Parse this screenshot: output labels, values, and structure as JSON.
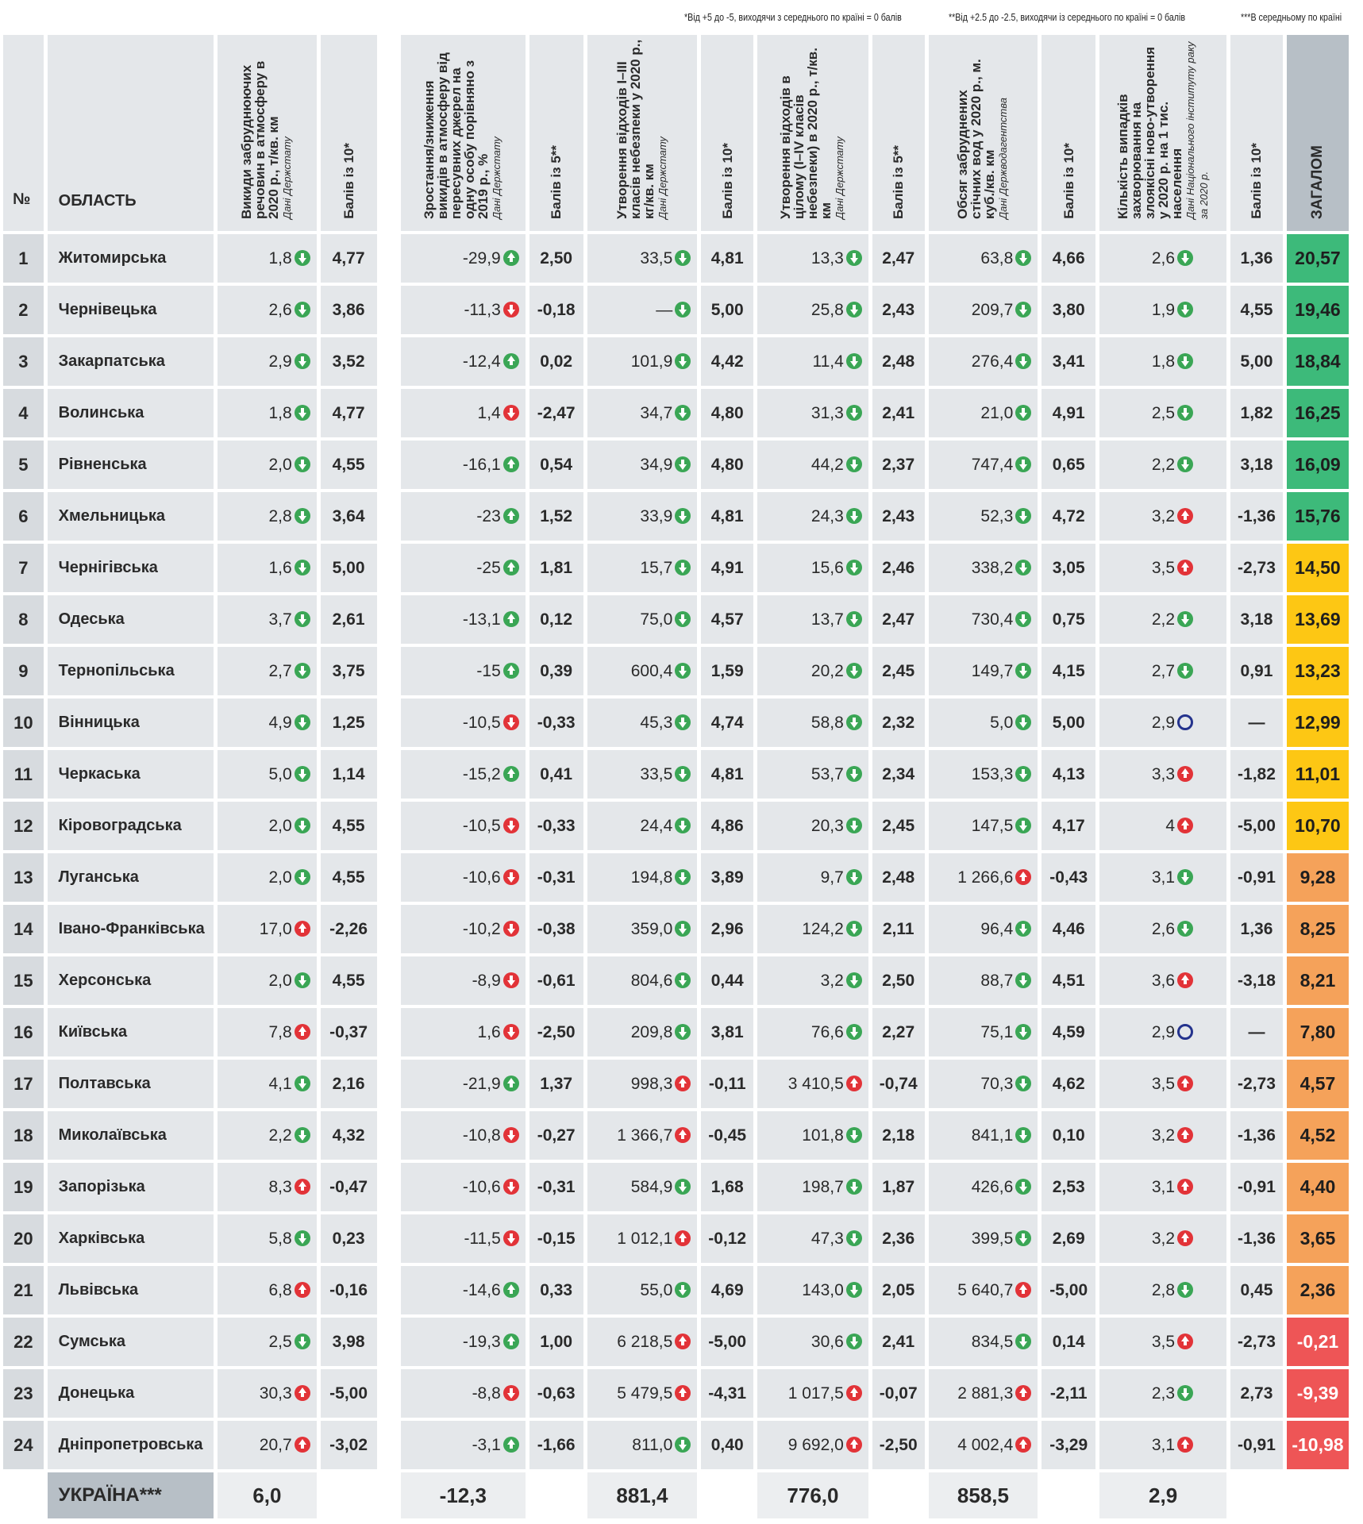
{
  "notes": [
    "*Від +5 до -5, виходячи з середнього по країні = 0 балів",
    "**Від +2.5 до -2.5, виходячи із середнього по країні = 0 балів",
    "***В середньому по країні"
  ],
  "headers": {
    "num": "№",
    "region": "ОБЛАСТЬ",
    "c1": {
      "title": "Викиди забруднюючих речовин в атмосферу в 2020 р., т/кв. км",
      "source": "Дані Держстату"
    },
    "s1": "Балів із 10*",
    "c2": {
      "title": "Зростання/зниження викидів в атмосферу від пересувних джерел на одну особу порівняно з 2019 р., %",
      "source": "Дані Держстату"
    },
    "s2": "Балів із 5**",
    "c3": {
      "title": "Утворення відходів I–III класів небезпеки у 2020 р., кг/кв. км",
      "source": "Дані Держстату"
    },
    "s3": "Балів із 10*",
    "c4": {
      "title": "Утворення відходів в цілому (I–IV класів небезпеки) в 2020 р., т/кв. км",
      "source": "Дані Держстату"
    },
    "s4": "Балів із 5**",
    "c5": {
      "title": "Обсяг забруднених стічних вод у 2020 р., м. куб./кв. км",
      "source": "Дані Держводагентства"
    },
    "s5": "Балів із 10*",
    "c6": {
      "title": "Кількість випадків захворювання на злоякісні ново-утворення у 2020 р. на 1 тис. населення",
      "source": "Дані Національного інституту раку за 2020 р."
    },
    "s6": "Балів із 10*",
    "total": "ЗАГАЛОМ"
  },
  "icon_legend": {
    "green": "#3aa655",
    "red": "#e23338",
    "circle": "#24338d"
  },
  "total_colors": {
    "green": "#3dba7a",
    "yellow": "#fdc714",
    "orange": "#f5a25a",
    "red": "#ee5556"
  },
  "rows": [
    {
      "n": "1",
      "region": "Житомирська",
      "v1": "1,8",
      "i1": "down",
      "s1": "4,77",
      "v2": "-29,9",
      "i2": "green-up",
      "s2": "2,50",
      "v3": "33,5",
      "i3": "down",
      "s3": "4,81",
      "v4": "13,3",
      "i4": "down",
      "s4": "2,47",
      "v5": "63,8",
      "i5": "down",
      "s5": "4,66",
      "v6": "2,6",
      "i6": "down",
      "s6": "1,36",
      "total": "20,57",
      "tc": "green"
    },
    {
      "n": "2",
      "region": "Чернівецька",
      "v1": "2,6",
      "i1": "down",
      "s1": "3,86",
      "v2": "-11,3",
      "i2": "red-down",
      "s2": "-0,18",
      "v3": "—",
      "i3": "down",
      "s3": "5,00",
      "v4": "25,8",
      "i4": "down",
      "s4": "2,43",
      "v5": "209,7",
      "i5": "down",
      "s5": "3,80",
      "v6": "1,9",
      "i6": "down",
      "s6": "4,55",
      "total": "19,46",
      "tc": "green"
    },
    {
      "n": "3",
      "region": "Закарпатська",
      "v1": "2,9",
      "i1": "down",
      "s1": "3,52",
      "v2": "-12,4",
      "i2": "green-up",
      "s2": "0,02",
      "v3": "101,9",
      "i3": "down",
      "s3": "4,42",
      "v4": "11,4",
      "i4": "down",
      "s4": "2,48",
      "v5": "276,4",
      "i5": "down",
      "s5": "3,41",
      "v6": "1,8",
      "i6": "down",
      "s6": "5,00",
      "total": "18,84",
      "tc": "green"
    },
    {
      "n": "4",
      "region": "Волинська",
      "v1": "1,8",
      "i1": "down",
      "s1": "4,77",
      "v2": "1,4",
      "i2": "red-down",
      "s2": "-2,47",
      "v3": "34,7",
      "i3": "down",
      "s3": "4,80",
      "v4": "31,3",
      "i4": "down",
      "s4": "2,41",
      "v5": "21,0",
      "i5": "down",
      "s5": "4,91",
      "v6": "2,5",
      "i6": "down",
      "s6": "1,82",
      "total": "16,25",
      "tc": "green"
    },
    {
      "n": "5",
      "region": "Рівненська",
      "v1": "2,0",
      "i1": "down",
      "s1": "4,55",
      "v2": "-16,1",
      "i2": "green-up",
      "s2": "0,54",
      "v3": "34,9",
      "i3": "down",
      "s3": "4,80",
      "v4": "44,2",
      "i4": "down",
      "s4": "2,37",
      "v5": "747,4",
      "i5": "down",
      "s5": "0,65",
      "v6": "2,2",
      "i6": "down",
      "s6": "3,18",
      "total": "16,09",
      "tc": "green"
    },
    {
      "n": "6",
      "region": "Хмельницька",
      "v1": "2,8",
      "i1": "down",
      "s1": "3,64",
      "v2": "-23",
      "i2": "green-up",
      "s2": "1,52",
      "v3": "33,9",
      "i3": "down",
      "s3": "4,81",
      "v4": "24,3",
      "i4": "down",
      "s4": "2,43",
      "v5": "52,3",
      "i5": "down",
      "s5": "4,72",
      "v6": "3,2",
      "i6": "up",
      "s6": "-1,36",
      "total": "15,76",
      "tc": "green"
    },
    {
      "n": "7",
      "region": "Чернігівська",
      "v1": "1,6",
      "i1": "down",
      "s1": "5,00",
      "v2": "-25",
      "i2": "green-up",
      "s2": "1,81",
      "v3": "15,7",
      "i3": "down",
      "s3": "4,91",
      "v4": "15,6",
      "i4": "down",
      "s4": "2,46",
      "v5": "338,2",
      "i5": "down",
      "s5": "3,05",
      "v6": "3,5",
      "i6": "up",
      "s6": "-2,73",
      "total": "14,50",
      "tc": "yellow"
    },
    {
      "n": "8",
      "region": "Одеська",
      "v1": "3,7",
      "i1": "down",
      "s1": "2,61",
      "v2": "-13,1",
      "i2": "green-up",
      "s2": "0,12",
      "v3": "75,0",
      "i3": "down",
      "s3": "4,57",
      "v4": "13,7",
      "i4": "down",
      "s4": "2,47",
      "v5": "730,4",
      "i5": "down",
      "s5": "0,75",
      "v6": "2,2",
      "i6": "down",
      "s6": "3,18",
      "total": "13,69",
      "tc": "yellow"
    },
    {
      "n": "9",
      "region": "Тернопільська",
      "v1": "2,7",
      "i1": "down",
      "s1": "3,75",
      "v2": "-15",
      "i2": "green-up",
      "s2": "0,39",
      "v3": "600,4",
      "i3": "down",
      "s3": "1,59",
      "v4": "20,2",
      "i4": "down",
      "s4": "2,45",
      "v5": "149,7",
      "i5": "down",
      "s5": "4,15",
      "v6": "2,7",
      "i6": "down",
      "s6": "0,91",
      "total": "13,23",
      "tc": "yellow"
    },
    {
      "n": "10",
      "region": "Вінницька",
      "v1": "4,9",
      "i1": "down",
      "s1": "1,25",
      "v2": "-10,5",
      "i2": "red-down",
      "s2": "-0,33",
      "v3": "45,3",
      "i3": "down",
      "s3": "4,74",
      "v4": "58,8",
      "i4": "down",
      "s4": "2,32",
      "v5": "5,0",
      "i5": "down",
      "s5": "5,00",
      "v6": "2,9",
      "i6": "circle",
      "s6": "—",
      "total": "12,99",
      "tc": "yellow"
    },
    {
      "n": "11",
      "region": "Черкаська",
      "v1": "5,0",
      "i1": "down",
      "s1": "1,14",
      "v2": "-15,2",
      "i2": "green-up",
      "s2": "0,41",
      "v3": "33,5",
      "i3": "down",
      "s3": "4,81",
      "v4": "53,7",
      "i4": "down",
      "s4": "2,34",
      "v5": "153,3",
      "i5": "down",
      "s5": "4,13",
      "v6": "3,3",
      "i6": "up",
      "s6": "-1,82",
      "total": "11,01",
      "tc": "yellow"
    },
    {
      "n": "12",
      "region": "Кіровоградська",
      "v1": "2,0",
      "i1": "down",
      "s1": "4,55",
      "v2": "-10,5",
      "i2": "red-down",
      "s2": "-0,33",
      "v3": "24,4",
      "i3": "down",
      "s3": "4,86",
      "v4": "20,3",
      "i4": "down",
      "s4": "2,45",
      "v5": "147,5",
      "i5": "down",
      "s5": "4,17",
      "v6": "4",
      "i6": "up",
      "s6": "-5,00",
      "total": "10,70",
      "tc": "yellow"
    },
    {
      "n": "13",
      "region": "Луганська",
      "v1": "2,0",
      "i1": "down",
      "s1": "4,55",
      "v2": "-10,6",
      "i2": "red-down",
      "s2": "-0,31",
      "v3": "194,8",
      "i3": "down",
      "s3": "3,89",
      "v4": "9,7",
      "i4": "down",
      "s4": "2,48",
      "v5": "1 266,6",
      "i5": "up",
      "s5": "-0,43",
      "v6": "3,1",
      "i6": "down",
      "s6": "-0,91",
      "total": "9,28",
      "tc": "orange"
    },
    {
      "n": "14",
      "region": "Івано-Франківська",
      "v1": "17,0",
      "i1": "up",
      "s1": "-2,26",
      "v2": "-10,2",
      "i2": "red-down",
      "s2": "-0,38",
      "v3": "359,0",
      "i3": "down",
      "s3": "2,96",
      "v4": "124,2",
      "i4": "down",
      "s4": "2,11",
      "v5": "96,4",
      "i5": "down",
      "s5": "4,46",
      "v6": "2,6",
      "i6": "down",
      "s6": "1,36",
      "total": "8,25",
      "tc": "orange"
    },
    {
      "n": "15",
      "region": "Херсонська",
      "v1": "2,0",
      "i1": "down",
      "s1": "4,55",
      "v2": "-8,9",
      "i2": "red-down",
      "s2": "-0,61",
      "v3": "804,6",
      "i3": "down",
      "s3": "0,44",
      "v4": "3,2",
      "i4": "down",
      "s4": "2,50",
      "v5": "88,7",
      "i5": "down",
      "s5": "4,51",
      "v6": "3,6",
      "i6": "up",
      "s6": "-3,18",
      "total": "8,21",
      "tc": "orange"
    },
    {
      "n": "16",
      "region": "Київська",
      "v1": "7,8",
      "i1": "up",
      "s1": "-0,37",
      "v2": "1,6",
      "i2": "red-down",
      "s2": "-2,50",
      "v3": "209,8",
      "i3": "down",
      "s3": "3,81",
      "v4": "76,6",
      "i4": "down",
      "s4": "2,27",
      "v5": "75,1",
      "i5": "down",
      "s5": "4,59",
      "v6": "2,9",
      "i6": "circle",
      "s6": "—",
      "total": "7,80",
      "tc": "orange"
    },
    {
      "n": "17",
      "region": "Полтавська",
      "v1": "4,1",
      "i1": "down",
      "s1": "2,16",
      "v2": "-21,9",
      "i2": "green-up",
      "s2": "1,37",
      "v3": "998,3",
      "i3": "up",
      "s3": "-0,11",
      "v4": "3 410,5",
      "i4": "up",
      "s4": "-0,74",
      "v5": "70,3",
      "i5": "down",
      "s5": "4,62",
      "v6": "3,5",
      "i6": "up",
      "s6": "-2,73",
      "total": "4,57",
      "tc": "orange"
    },
    {
      "n": "18",
      "region": "Миколаївська",
      "v1": "2,2",
      "i1": "down",
      "s1": "4,32",
      "v2": "-10,8",
      "i2": "red-down",
      "s2": "-0,27",
      "v3": "1 366,7",
      "i3": "up",
      "s3": "-0,45",
      "v4": "101,8",
      "i4": "down",
      "s4": "2,18",
      "v5": "841,1",
      "i5": "down",
      "s5": "0,10",
      "v6": "3,2",
      "i6": "up",
      "s6": "-1,36",
      "total": "4,52",
      "tc": "orange"
    },
    {
      "n": "19",
      "region": "Запорізька",
      "v1": "8,3",
      "i1": "up",
      "s1": "-0,47",
      "v2": "-10,6",
      "i2": "red-down",
      "s2": "-0,31",
      "v3": "584,9",
      "i3": "down",
      "s3": "1,68",
      "v4": "198,7",
      "i4": "down",
      "s4": "1,87",
      "v5": "426,6",
      "i5": "down",
      "s5": "2,53",
      "v6": "3,1",
      "i6": "up",
      "s6": "-0,91",
      "total": "4,40",
      "tc": "orange"
    },
    {
      "n": "20",
      "region": "Харківська",
      "v1": "5,8",
      "i1": "down",
      "s1": "0,23",
      "v2": "-11,5",
      "i2": "red-down",
      "s2": "-0,15",
      "v3": "1 012,1",
      "i3": "up",
      "s3": "-0,12",
      "v4": "47,3",
      "i4": "down",
      "s4": "2,36",
      "v5": "399,5",
      "i5": "down",
      "s5": "2,69",
      "v6": "3,2",
      "i6": "up",
      "s6": "-1,36",
      "total": "3,65",
      "tc": "orange"
    },
    {
      "n": "21",
      "region": "Львівська",
      "v1": "6,8",
      "i1": "up",
      "s1": "-0,16",
      "v2": "-14,6",
      "i2": "green-up",
      "s2": "0,33",
      "v3": "55,0",
      "i3": "down",
      "s3": "4,69",
      "v4": "143,0",
      "i4": "down",
      "s4": "2,05",
      "v5": "5 640,7",
      "i5": "up",
      "s5": "-5,00",
      "v6": "2,8",
      "i6": "down",
      "s6": "0,45",
      "total": "2,36",
      "tc": "orange"
    },
    {
      "n": "22",
      "region": "Сумська",
      "v1": "2,5",
      "i1": "down",
      "s1": "3,98",
      "v2": "-19,3",
      "i2": "green-up",
      "s2": "1,00",
      "v3": "6 218,5",
      "i3": "up",
      "s3": "-5,00",
      "v4": "30,6",
      "i4": "down",
      "s4": "2,41",
      "v5": "834,5",
      "i5": "down",
      "s5": "0,14",
      "v6": "3,5",
      "i6": "up",
      "s6": "-2,73",
      "total": "-0,21",
      "tc": "red"
    },
    {
      "n": "23",
      "region": "Донецька",
      "v1": "30,3",
      "i1": "up",
      "s1": "-5,00",
      "v2": "-8,8",
      "i2": "red-down",
      "s2": "-0,63",
      "v3": "5 479,5",
      "i3": "up",
      "s3": "-4,31",
      "v4": "1 017,5",
      "i4": "up",
      "s4": "-0,07",
      "v5": "2 881,3",
      "i5": "up",
      "s5": "-2,11",
      "v6": "2,3",
      "i6": "down",
      "s6": "2,73",
      "total": "-9,39",
      "tc": "red"
    },
    {
      "n": "24",
      "region": "Дніпропетровська",
      "v1": "20,7",
      "i1": "up",
      "s1": "-3,02",
      "v2": "-3,1",
      "i2": "green-up",
      "s2": "-1,66",
      "v3": "811,0",
      "i3": "down",
      "s3": "0,40",
      "v4": "9 692,0",
      "i4": "up",
      "s4": "-2,50",
      "v5": "4 002,4",
      "i5": "up",
      "s5": "-3,29",
      "v6": "3,1",
      "i6": "up",
      "s6": "-0,91",
      "total": "-10,98",
      "tc": "red"
    }
  ],
  "ukraine": {
    "label": "УКРАЇНА***",
    "v1": "6,0",
    "v2": "-12,3",
    "v3": "881,4",
    "v4": "776,0",
    "v5": "858,5",
    "v6": "2,9"
  }
}
